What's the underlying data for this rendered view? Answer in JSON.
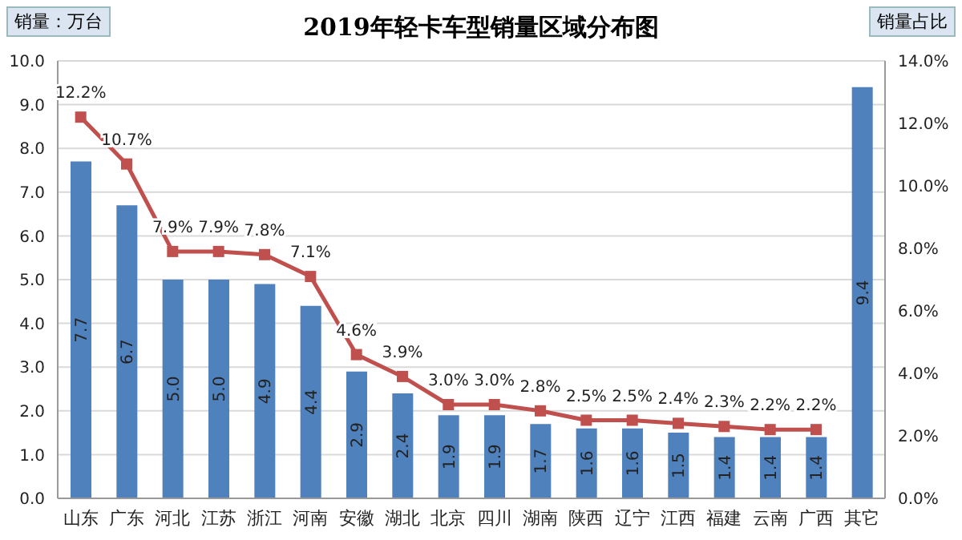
{
  "chart_data": {
    "type": "bar",
    "title": "2019年轻卡车型销量区域分布图",
    "ylabel": "销量：万台",
    "y2label": "销量占比",
    "categories": [
      "山东",
      "广东",
      "河北",
      "江苏",
      "浙江",
      "河南",
      "安徽",
      "湖北",
      "北京",
      "四川",
      "湖南",
      "陕西",
      "辽宁",
      "江西",
      "福建",
      "云南",
      "广西",
      "其它"
    ],
    "series": [
      {
        "color": "#4f81bd",
        "values": [
          7.7,
          6.7,
          5.0,
          5.0,
          4.9,
          4.4,
          2.9,
          2.4,
          1.9,
          1.9,
          1.7,
          1.6,
          1.6,
          1.5,
          1.4,
          1.4,
          1.4,
          9.4
        ],
        "value_labels": [
          "7.7",
          "6.7",
          "5.0",
          "5.0",
          "4.9",
          "4.4",
          "2.9",
          "2.4",
          "1.9",
          "1.9",
          "1.7",
          "1.6",
          "1.6",
          "1.5",
          "1.4",
          "1.4",
          "1.4",
          "9.4"
        ]
      },
      {
        "type": "line",
        "axis": "y2",
        "color": "#c0504d",
        "marker": "square",
        "values": [
          12.2,
          10.7,
          7.9,
          7.9,
          7.8,
          7.1,
          4.6,
          3.9,
          3.0,
          3.0,
          2.8,
          2.5,
          2.5,
          2.4,
          2.3,
          2.2,
          2.2,
          null
        ],
        "value_labels": [
          "12.2%",
          "10.7%",
          "7.9%",
          "7.9%",
          "7.8%",
          "7.1%",
          "4.6%",
          "3.9%",
          "3.0%",
          "3.0%",
          "2.8%",
          "2.5%",
          "2.5%",
          "2.4%",
          "2.3%",
          "2.2%",
          "2.2%",
          null
        ]
      }
    ],
    "ylim": [
      0,
      10
    ],
    "yticks": [
      {
        "value": 0,
        "label": "0.0"
      },
      {
        "value": 1,
        "label": "1.0"
      },
      {
        "value": 2,
        "label": "2.0"
      },
      {
        "value": 3,
        "label": "3.0"
      },
      {
        "value": 4,
        "label": "4.0"
      },
      {
        "value": 5,
        "label": "5.0"
      },
      {
        "value": 6,
        "label": "6.0"
      },
      {
        "value": 7,
        "label": "7.0"
      },
      {
        "value": 8,
        "label": "8.0"
      },
      {
        "value": 9,
        "label": "9.0"
      },
      {
        "value": 10,
        "label": "10.0"
      }
    ],
    "y2lim": [
      0,
      14
    ],
    "y2ticks": [
      {
        "value": 0,
        "label": "0.0%"
      },
      {
        "value": 2,
        "label": "2.0%"
      },
      {
        "value": 4,
        "label": "4.0%"
      },
      {
        "value": 6,
        "label": "6.0%"
      },
      {
        "value": 8,
        "label": "8.0%"
      },
      {
        "value": 10,
        "label": "10.0%"
      },
      {
        "value": 12,
        "label": "12.0%"
      },
      {
        "value": 14,
        "label": "14.0%"
      }
    ],
    "grid": "y",
    "legend": false
  }
}
